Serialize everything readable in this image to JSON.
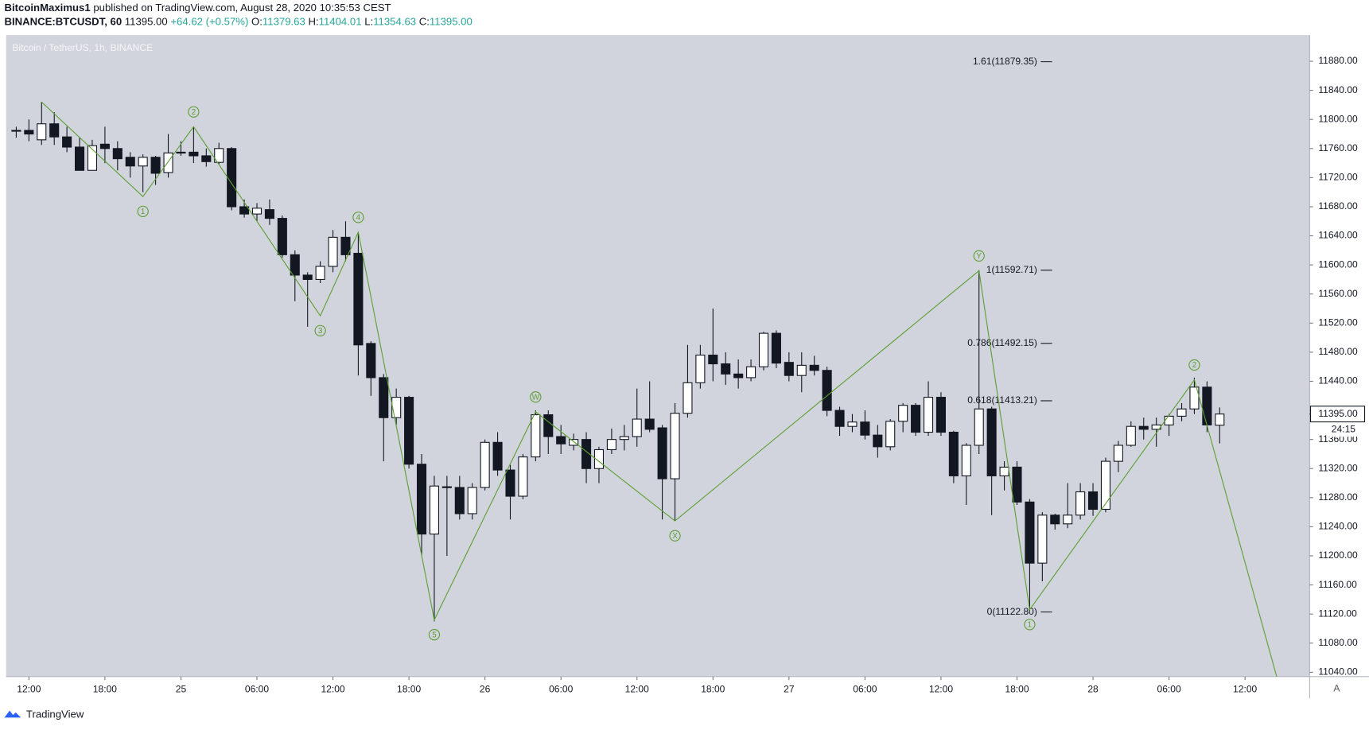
{
  "header": {
    "author": "BitcoinMaximus1",
    "published": "published on TradingView.com, August 28, 2020 10:35:53 CEST",
    "symbol": "BINANCE:BTCUSDT, 60",
    "last": "11395.00",
    "change": "+64.62 (+0.57%)",
    "ohlc": [
      {
        "label": "O:",
        "value": "11379.63"
      },
      {
        "label": "H:",
        "value": "11404.01"
      },
      {
        "label": "L:",
        "value": "11354.63"
      },
      {
        "label": "C:",
        "value": "11395.00"
      }
    ]
  },
  "footer": {
    "brand": "TradingView",
    "button": "A"
  },
  "chart_data": {
    "type": "candlestick",
    "title": "Bitcoin / TetherUS, 1h, BINANCE",
    "up_color": "#ffffff",
    "down_color": "#131722",
    "wave_color": "#5c9e31",
    "background": "#d1d4dc",
    "xlim": [
      10.2,
      113.1
    ],
    "ylim": [
      11034,
      11916
    ],
    "xticks": [
      {
        "value": 12,
        "label": "12:00"
      },
      {
        "value": 18,
        "label": "18:00"
      },
      {
        "value": 24,
        "label": "25"
      },
      {
        "value": 30,
        "label": "06:00"
      },
      {
        "value": 36,
        "label": "12:00"
      },
      {
        "value": 42,
        "label": "18:00"
      },
      {
        "value": 48,
        "label": "26"
      },
      {
        "value": 54,
        "label": "06:00"
      },
      {
        "value": 60,
        "label": "12:00"
      },
      {
        "value": 66,
        "label": "18:00"
      },
      {
        "value": 72,
        "label": "27"
      },
      {
        "value": 78,
        "label": "06:00"
      },
      {
        "value": 84,
        "label": "12:00"
      },
      {
        "value": 90,
        "label": "18:00"
      },
      {
        "value": 96,
        "label": "28"
      },
      {
        "value": 102,
        "label": "06:00"
      },
      {
        "value": 108,
        "label": "12:00"
      }
    ],
    "yticks": [
      {
        "value": 11040,
        "label": "11040.00"
      },
      {
        "value": 11080,
        "label": "11080.00"
      },
      {
        "value": 11120,
        "label": "11120.00"
      },
      {
        "value": 11160,
        "label": "11160.00"
      },
      {
        "value": 11200,
        "label": "11200.00"
      },
      {
        "value": 11240,
        "label": "11240.00"
      },
      {
        "value": 11280,
        "label": "11280.00"
      },
      {
        "value": 11320,
        "label": "11320.00"
      },
      {
        "value": 11360,
        "label": "11360.00"
      },
      {
        "value": 11400,
        "label": "11400.00"
      },
      {
        "value": 11440,
        "label": "11440.00"
      },
      {
        "value": 11480,
        "label": "11480.00"
      },
      {
        "value": 11520,
        "label": "11520.00"
      },
      {
        "value": 11560,
        "label": "11560.00"
      },
      {
        "value": 11600,
        "label": "11600.00"
      },
      {
        "value": 11640,
        "label": "11640.00"
      },
      {
        "value": 11680,
        "label": "11680.00"
      },
      {
        "value": 11720,
        "label": "11720.00"
      },
      {
        "value": 11760,
        "label": "11760.00"
      },
      {
        "value": 11800,
        "label": "11800.00"
      },
      {
        "value": 11840,
        "label": "11840.00"
      },
      {
        "value": 11880,
        "label": "11880.00"
      }
    ],
    "last_price": {
      "value": 11395,
      "label": "11395.00"
    },
    "countdown": "24:15",
    "x": [
      11,
      12,
      13,
      14,
      15,
      16,
      17,
      18,
      19,
      20,
      21,
      22,
      23,
      24,
      25,
      26,
      27,
      28,
      29,
      30,
      31,
      32,
      33,
      34,
      35,
      36,
      37,
      38,
      39,
      40,
      41,
      42,
      43,
      44,
      45,
      46,
      47,
      48,
      49,
      50,
      51,
      52,
      53,
      54,
      55,
      56,
      57,
      58,
      59,
      60,
      61,
      62,
      63,
      64,
      65,
      66,
      67,
      68,
      69,
      70,
      71,
      72,
      73,
      74,
      75,
      76,
      77,
      78,
      79,
      80,
      81,
      82,
      83,
      84,
      85,
      86,
      87,
      88,
      89,
      90,
      91,
      92,
      93,
      94,
      95,
      96,
      97,
      98,
      99,
      100,
      101,
      102,
      103,
      104,
      105,
      106
    ],
    "open": [
      11785,
      11785,
      11772,
      11794,
      11776,
      11762,
      11730,
      11766,
      11760,
      11748,
      11736,
      11748,
      11727,
      11754,
      11755,
      11750,
      11741,
      11760,
      11680,
      11670,
      11676,
      11664,
      11614,
      11586,
      11580,
      11598,
      11638,
      11616,
      11492,
      11445,
      11390,
      11418,
      11326,
      11230,
      11295,
      11294,
      11258,
      11294,
      11356,
      11318,
      11282,
      11336,
      11394,
      11364,
      11352,
      11360,
      11320,
      11346,
      11360,
      11364,
      11388,
      11376,
      11306,
      11396,
      11438,
      11476,
      11464,
      11450,
      11445,
      11460,
      11506,
      11466,
      11448,
      11462,
      11455,
      11400,
      11378,
      11384,
      11366,
      11350,
      11385,
      11407,
      11370,
      11418,
      11370,
      11310,
      11352,
      11402,
      11310,
      11322,
      11274,
      11190,
      11256,
      11244,
      11256,
      11288,
      11264,
      11330,
      11352,
      11378,
      11374,
      11380,
      11392,
      11402,
      11432,
      11379.63
    ],
    "high": [
      11790,
      11800,
      11824,
      11810,
      11790,
      11775,
      11772,
      11790,
      11770,
      11755,
      11752,
      11750,
      11780,
      11770,
      11790,
      11760,
      11768,
      11762,
      11690,
      11685,
      11690,
      11668,
      11620,
      11590,
      11605,
      11648,
      11660,
      11645,
      11495,
      11450,
      11430,
      11420,
      11340,
      11310,
      11310,
      11310,
      11300,
      11360,
      11370,
      11325,
      11340,
      11400,
      11400,
      11380,
      11368,
      11370,
      11350,
      11375,
      11380,
      11430,
      11440,
      11380,
      11410,
      11490,
      11490,
      11540,
      11480,
      11470,
      11470,
      11508,
      11510,
      11480,
      11480,
      11475,
      11460,
      11405,
      11395,
      11400,
      11380,
      11388,
      11410,
      11410,
      11440,
      11425,
      11372,
      11355,
      11592.71,
      11405,
      11330,
      11330,
      11278,
      11260,
      11258,
      11300,
      11300,
      11300,
      11335,
      11358,
      11385,
      11390,
      11390,
      11395,
      11410,
      11445,
      11440,
      11404.01
    ],
    "low": [
      11775,
      11770,
      11765,
      11765,
      11755,
      11730,
      11730,
      11740,
      11730,
      11720,
      11700,
      11710,
      11720,
      11750,
      11740,
      11735,
      11738,
      11675,
      11665,
      11660,
      11655,
      11610,
      11550,
      11515,
      11575,
      11590,
      11605,
      11448,
      11420,
      11330,
      11380,
      11320,
      11200,
      11110,
      11200,
      11250,
      11250,
      11290,
      11310,
      11250,
      11278,
      11330,
      11340,
      11340,
      11345,
      11300,
      11300,
      11340,
      11345,
      11350,
      11370,
      11250,
      11248,
      11390,
      11430,
      11440,
      11435,
      11430,
      11440,
      11455,
      11458,
      11440,
      11425,
      11448,
      11392,
      11365,
      11370,
      11360,
      11335,
      11345,
      11370,
      11365,
      11365,
      11365,
      11300,
      11270,
      11340,
      11256,
      11290,
      11270,
      11125,
      11165,
      11236,
      11238,
      11250,
      11255,
      11260,
      11315,
      11350,
      11360,
      11350,
      11365,
      11385,
      11395,
      11370,
      11354.63
    ],
    "close": [
      11785,
      11780,
      11794,
      11776,
      11762,
      11730,
      11764,
      11760,
      11746,
      11736,
      11748,
      11726,
      11754,
      11755,
      11750,
      11742,
      11760,
      11680,
      11670,
      11678,
      11664,
      11614,
      11586,
      11580,
      11598,
      11638,
      11614,
      11490,
      11445,
      11390,
      11418,
      11326,
      11230,
      11296,
      11294,
      11258,
      11294,
      11356,
      11318,
      11282,
      11336,
      11394,
      11364,
      11354,
      11360,
      11320,
      11346,
      11360,
      11364,
      11388,
      11374,
      11306,
      11396,
      11438,
      11476,
      11464,
      11450,
      11445,
      11460,
      11506,
      11465,
      11448,
      11462,
      11455,
      11400,
      11378,
      11384,
      11366,
      11350,
      11385,
      11407,
      11370,
      11418,
      11370,
      11310,
      11352,
      11402,
      11310,
      11322,
      11274,
      11190,
      11256,
      11244,
      11256,
      11288,
      11264,
      11330,
      11352,
      11378,
      11374,
      11380,
      11392,
      11402,
      11432,
      11380,
      11395
    ],
    "fib_levels": [
      {
        "value": 11879.35,
        "label": "1.61(11879.35)"
      },
      {
        "value": 11592.71,
        "label": "1(11592.71)"
      },
      {
        "value": 11492.15,
        "label": "0.786(11492.15)"
      },
      {
        "value": 11413.21,
        "label": "0.618(11413.21)"
      },
      {
        "value": 11122.8,
        "label": "0(11122.80)"
      }
    ],
    "waves": {
      "x": [
        13,
        21,
        25,
        35,
        38,
        44,
        52,
        63,
        87,
        91,
        104,
        110.5
      ],
      "y": [
        11824,
        11694,
        11790,
        11530,
        11645,
        11112,
        11398,
        11248,
        11592,
        11126,
        11442,
        11034
      ],
      "labels": [
        null,
        "1",
        "2",
        "3",
        "4",
        "5",
        "W",
        "X",
        "Y",
        "1",
        "2",
        null
      ]
    }
  }
}
